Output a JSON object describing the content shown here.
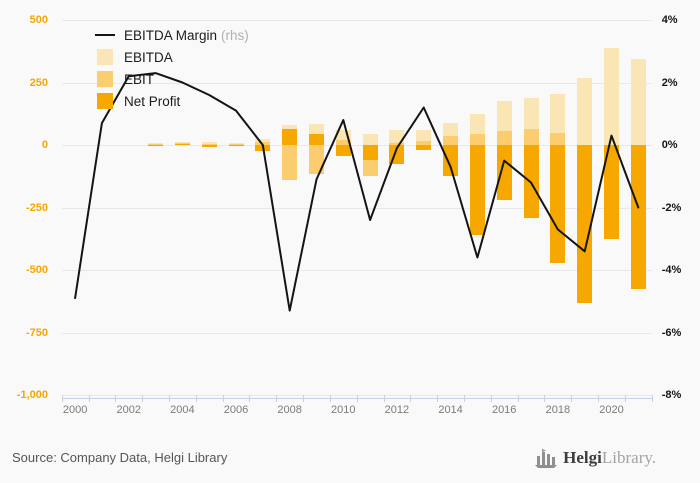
{
  "legend": {
    "margin_label": "EBITDA Margin",
    "margin_suffix": "(rhs)",
    "items": [
      {
        "label": "EBITDA",
        "color": "#fae5b4"
      },
      {
        "label": "EBIT",
        "color": "#fbcd6e"
      },
      {
        "label": "Net Profit",
        "color": "#f6a700"
      }
    ]
  },
  "footer": {
    "source": "Source: Company Data, Helgi Library",
    "logo_text_primary": "Helgi",
    "logo_text_secondary": "Library."
  },
  "chart_data": {
    "type": "bar",
    "subtype": "overlapped-bars-with-line",
    "x": [
      2000,
      2001,
      2002,
      2003,
      2004,
      2005,
      2006,
      2007,
      2008,
      2009,
      2010,
      2011,
      2012,
      2013,
      2014,
      2015,
      2016,
      2017,
      2018,
      2019,
      2020,
      2021
    ],
    "series": [
      {
        "name": "EBITDA",
        "type": "bar",
        "axis": "left",
        "color": "#fae5b4",
        "values": [
          0,
          0,
          0,
          8,
          12,
          12,
          10,
          25,
          80,
          85,
          60,
          45,
          60,
          60,
          90,
          125,
          175,
          190,
          205,
          270,
          390,
          345
        ]
      },
      {
        "name": "EBIT",
        "type": "bar",
        "axis": "left",
        "color": "#fbcd6e",
        "values": [
          0,
          0,
          0,
          5,
          8,
          5,
          6,
          12,
          -140,
          -115,
          20,
          -125,
          10,
          15,
          35,
          45,
          55,
          65,
          50,
          -30,
          -40,
          -15
        ]
      },
      {
        "name": "Net Profit",
        "type": "bar",
        "axis": "left",
        "color": "#f6a700",
        "values": [
          0,
          0,
          0,
          -3,
          3,
          -8,
          -3,
          -25,
          65,
          45,
          -45,
          -60,
          -75,
          -20,
          -125,
          -360,
          -220,
          -290,
          -470,
          -630,
          -375,
          -575
        ]
      },
      {
        "name": "EBITDA Margin (rhs)",
        "type": "line",
        "axis": "right",
        "color": "#141414",
        "values": [
          -4.9,
          0.7,
          2.2,
          2.3,
          2.0,
          1.6,
          1.1,
          0.0,
          -5.3,
          -1.1,
          0.8,
          -2.4,
          -0.1,
          1.2,
          -0.7,
          -3.6,
          -0.5,
          -1.2,
          -2.7,
          -3.4,
          0.3,
          -2.0
        ]
      }
    ],
    "left_axis": {
      "min": -1000,
      "max": 500,
      "step": 250,
      "color": "#f5a700",
      "labels": [
        "500",
        "250",
        "0",
        "-250",
        "-500",
        "-750",
        "-1,000"
      ]
    },
    "right_axis": {
      "min": -8,
      "max": 4,
      "step": 2,
      "color": "#151515",
      "labels": [
        "4%",
        "2%",
        "0%",
        "-2%",
        "-4%",
        "-6%",
        "-8%"
      ]
    },
    "x_tick_labels": [
      "2000",
      "2002",
      "2004",
      "2006",
      "2008",
      "2010",
      "2012",
      "2014",
      "2016",
      "2018",
      "2020"
    ],
    "grid": true,
    "legend_position": "top-left",
    "title": "",
    "xlabel": "",
    "ylabel": ""
  }
}
